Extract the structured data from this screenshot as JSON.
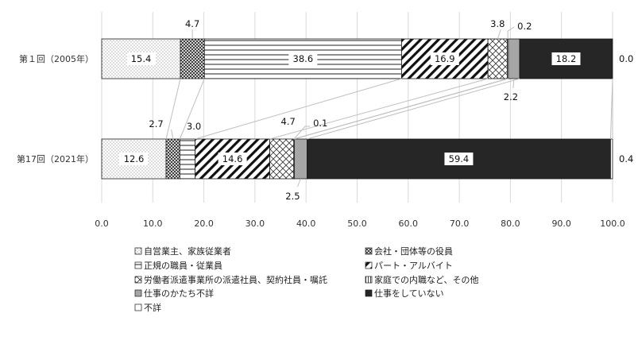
{
  "chart_data": {
    "type": "bar",
    "orientation": "horizontal",
    "stacked": true,
    "xlim": [
      0,
      100
    ],
    "x_ticks": [
      "0.0",
      "10.0",
      "20.0",
      "30.0",
      "40.0",
      "50.0",
      "60.0",
      "70.0",
      "80.0",
      "90.0",
      "100.0"
    ],
    "grid": "vertical",
    "legend_placement": "bottom",
    "categories": [
      "第１回（2005年）",
      "第17回（2021年）"
    ],
    "series": [
      {
        "name": "自営業主、家族従業者",
        "values": [
          15.4,
          12.6
        ],
        "labels": [
          "15.4",
          "12.6"
        ],
        "pattern": "dots",
        "color": "#ffffff"
      },
      {
        "name": "会社・団体等の役員",
        "values": [
          4.7,
          2.7
        ],
        "labels": [
          "4.7",
          "2.7"
        ],
        "pattern": "crosshatch",
        "color": "#ffffff"
      },
      {
        "name": "正規の職員・従業員",
        "values": [
          38.6,
          3.0
        ],
        "labels": [
          "38.6",
          "3.0"
        ],
        "pattern": "hlines",
        "color": "#ffffff"
      },
      {
        "name": "パート・アルバイト",
        "values": [
          16.9,
          14.6
        ],
        "labels": [
          "16.9",
          "14.6"
        ],
        "pattern": "diag-wide",
        "color": "#ffffff"
      },
      {
        "name": "労働者派遣事業所の派遣社員、契約社員・嘱託",
        "values": [
          3.8,
          4.7
        ],
        "labels": [
          "3.8",
          "4.7"
        ],
        "pattern": "diamond",
        "color": "#ffffff"
      },
      {
        "name": "家庭での内職など、その他",
        "values": [
          0.2,
          0.1
        ],
        "labels": [
          "0.2",
          "0.1"
        ],
        "pattern": "vlines",
        "color": "#ffffff"
      },
      {
        "name": "仕事のかたち不詳",
        "values": [
          2.2,
          2.5
        ],
        "labels": [
          "2.2",
          "2.5"
        ],
        "pattern": "solid",
        "color": "#a6a6a6"
      },
      {
        "name": "仕事をしていない",
        "values": [
          18.2,
          59.4
        ],
        "labels": [
          "18.2",
          "59.4"
        ],
        "pattern": "solid",
        "color": "#262626"
      },
      {
        "name": "不詳",
        "values": [
          0.0,
          0.4
        ],
        "labels": [
          "0.0",
          "0.4"
        ],
        "pattern": "solid",
        "color": "#ffffff"
      }
    ]
  }
}
